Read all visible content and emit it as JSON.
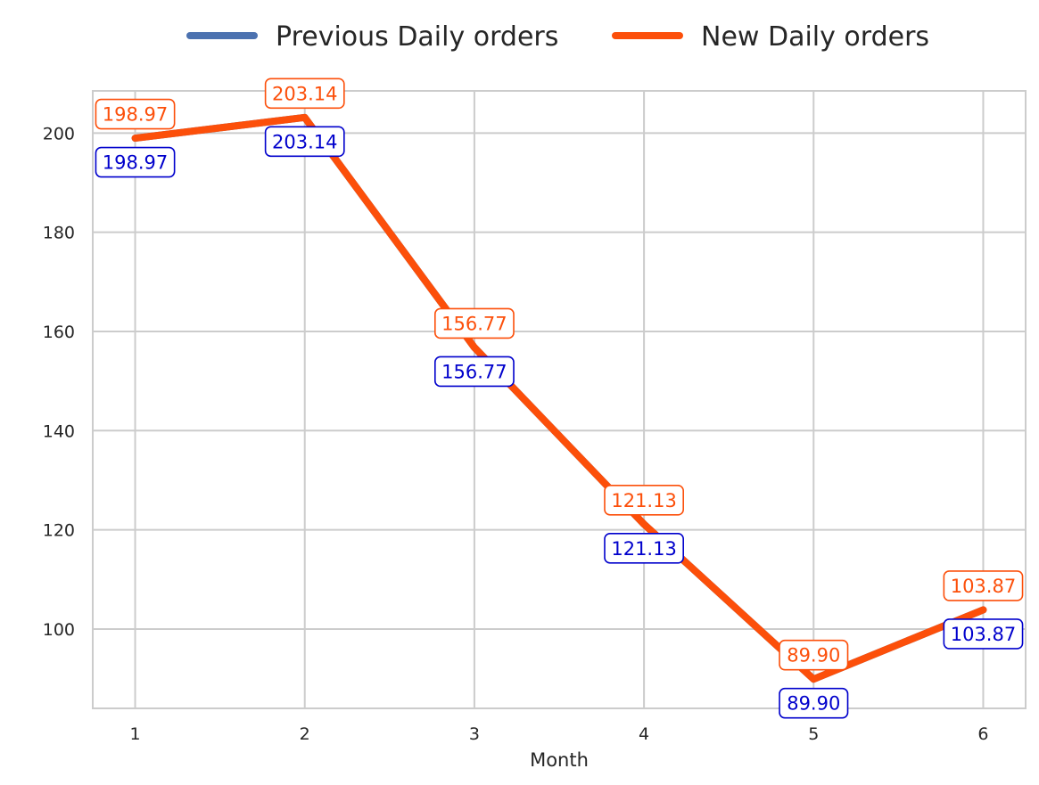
{
  "chart_data": {
    "type": "line",
    "xlabel": "Month",
    "ylabel": "",
    "x": [
      1,
      2,
      3,
      4,
      5,
      6
    ],
    "xlim": [
      0.75,
      6.25
    ],
    "ylim": [
      84,
      208.5
    ],
    "yticks": [
      100,
      120,
      140,
      160,
      180,
      200
    ],
    "grid": true,
    "legend_position": "top-center",
    "series": [
      {
        "name": "Previous Daily orders",
        "values": [
          198.97,
          203.14,
          156.77,
          121.13,
          89.9,
          103.87
        ],
        "labels": [
          "198.97",
          "203.14",
          "156.77",
          "121.13",
          "89.90",
          "103.87"
        ],
        "color": "#4c72b0",
        "label_color": "#0000cc",
        "label_position": "below"
      },
      {
        "name": "New Daily orders",
        "values": [
          198.97,
          203.14,
          156.77,
          121.13,
          89.9,
          103.87
        ],
        "labels": [
          "198.97",
          "203.14",
          "156.77",
          "121.13",
          "89.90",
          "103.87"
        ],
        "color": "#fc4f0a",
        "label_color": "#fc4f0a",
        "label_position": "above"
      }
    ]
  }
}
